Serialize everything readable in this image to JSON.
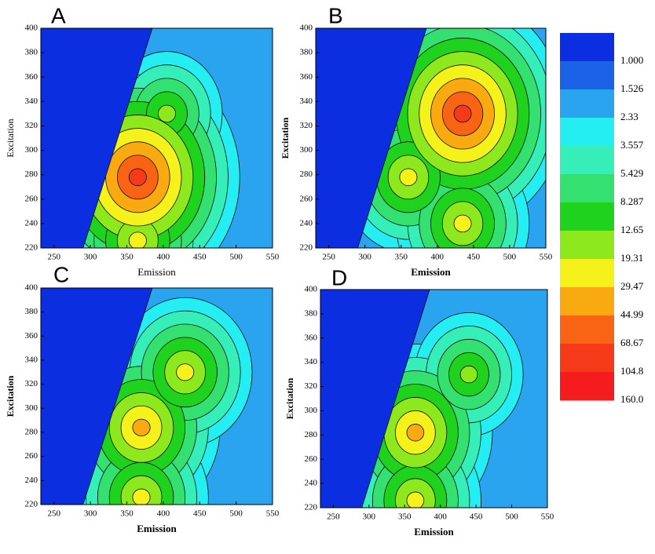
{
  "chart_data": [
    {
      "type": "contour",
      "title": "A",
      "xlabel": "Emission",
      "ylabel": "Excitation",
      "xlim": [
        232,
        550
      ],
      "ylim": [
        220,
        400
      ],
      "xticks": [
        250,
        300,
        350,
        400,
        450,
        500,
        550
      ],
      "yticks": [
        220,
        240,
        260,
        280,
        300,
        320,
        340,
        360,
        380,
        400
      ],
      "peaks": [
        {
          "x": 365,
          "y": 278,
          "level": 104.8
        },
        {
          "x": 405,
          "y": 330,
          "level": 19.31
        },
        {
          "x": 365,
          "y": 226,
          "level": 29.47
        }
      ]
    },
    {
      "type": "contour",
      "title": "B",
      "xlabel": "Emission",
      "ylabel": "Excitation",
      "xlim": [
        232,
        550
      ],
      "ylim": [
        220,
        400
      ],
      "xticks": [
        250,
        300,
        350,
        400,
        450,
        500,
        550
      ],
      "yticks": [
        220,
        240,
        260,
        280,
        300,
        320,
        340,
        360,
        380,
        400
      ],
      "peaks": [
        {
          "x": 435,
          "y": 330,
          "level": 104.8
        },
        {
          "x": 360,
          "y": 278,
          "level": 29.47
        },
        {
          "x": 435,
          "y": 240,
          "level": 29.47
        }
      ]
    },
    {
      "type": "contour",
      "title": "C",
      "xlabel": "Emission",
      "ylabel": "Excitation",
      "xlim": [
        232,
        550
      ],
      "ylim": [
        220,
        400
      ],
      "xticks": [
        250,
        300,
        350,
        400,
        450,
        500,
        550
      ],
      "yticks": [
        220,
        240,
        260,
        280,
        300,
        320,
        340,
        360,
        380,
        400
      ],
      "peaks": [
        {
          "x": 370,
          "y": 284,
          "level": 44.99
        },
        {
          "x": 430,
          "y": 330,
          "level": 29.47
        },
        {
          "x": 370,
          "y": 226,
          "level": 29.47
        }
      ]
    },
    {
      "type": "contour",
      "title": "D",
      "xlabel": "Emission",
      "ylabel": "Excitation",
      "xlim": [
        232,
        550
      ],
      "ylim": [
        220,
        400
      ],
      "xticks": [
        250,
        300,
        350,
        400,
        450,
        500,
        550
      ],
      "yticks": [
        220,
        240,
        260,
        280,
        300,
        320,
        340,
        360,
        380,
        400
      ],
      "peaks": [
        {
          "x": 365,
          "y": 282,
          "level": 44.99
        },
        {
          "x": 440,
          "y": 330,
          "level": 19.31
        },
        {
          "x": 365,
          "y": 226,
          "level": 29.47
        }
      ]
    },
    {
      "type": "colorbar",
      "levels": [
        {
          "value": 1,
          "label": "1.000"
        },
        1.526,
        2.33,
        3.557,
        5.429,
        8.287,
        12.65,
        19.31,
        29.47,
        44.99,
        68.67,
        104.8,
        {
          "value": 160,
          "label": "160.0"
        }
      ],
      "colors": [
        "#0b2ee0",
        "#1b62e6",
        "#2aa4ee",
        "#24eef2",
        "#36eeb8",
        "#34e070",
        "#1ed21e",
        "#8ee81e",
        "#f4f21a",
        "#f8aa10",
        "#f86414",
        "#f43a18",
        "#f41c1c"
      ]
    }
  ]
}
